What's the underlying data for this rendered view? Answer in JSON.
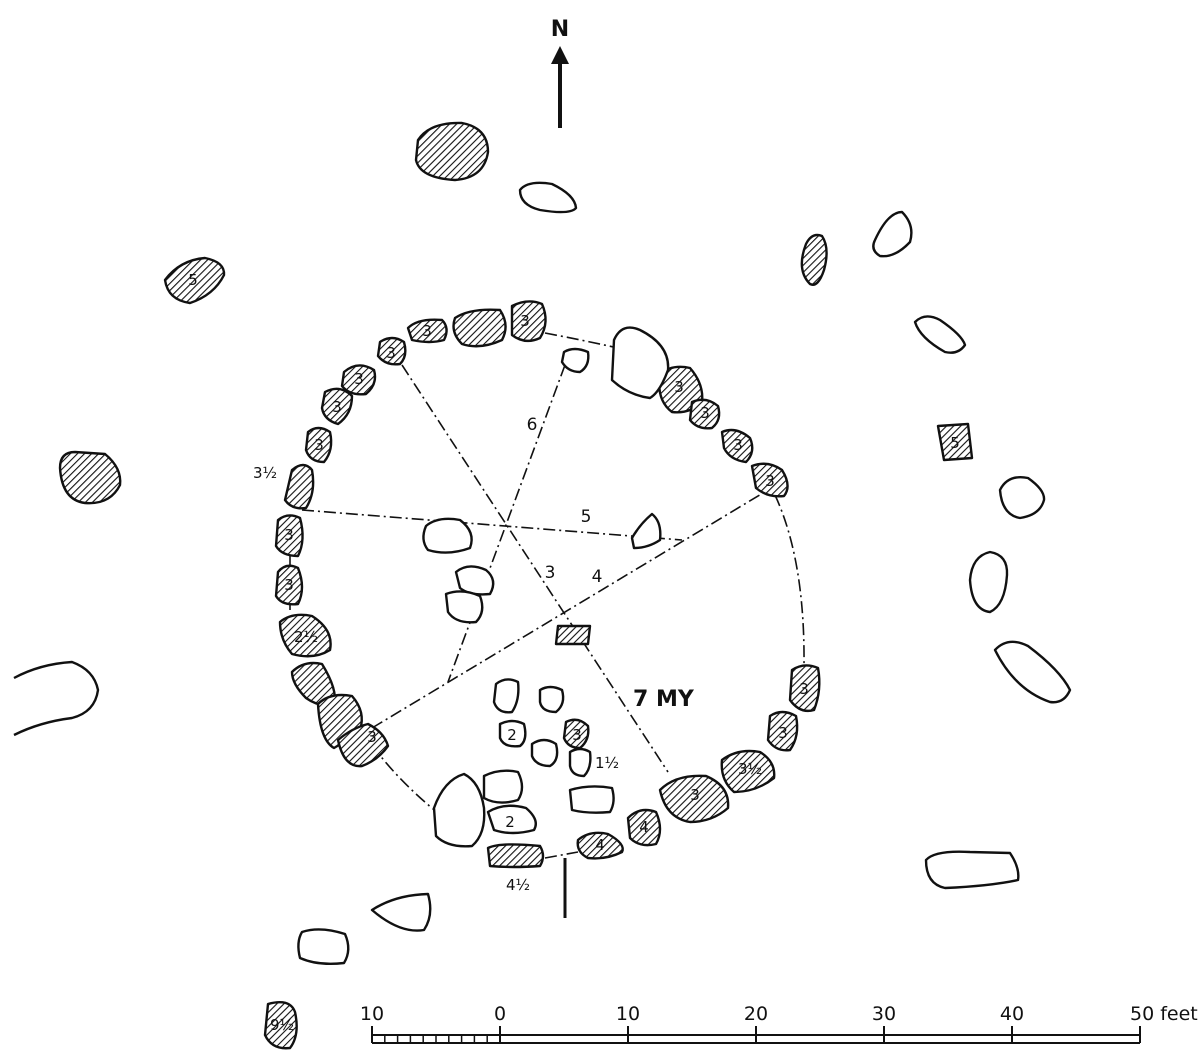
{
  "north_label": "N",
  "chord_labels": [
    "6",
    "5",
    "3",
    "4"
  ],
  "line_label": "7 MY",
  "stone_labels": {
    "outer_w": "5",
    "outer_e": "5",
    "sw_large": "9½",
    "nw_1": "3",
    "nw_2": "3",
    "nw_3": "3",
    "n_1": "3",
    "n_2": "3",
    "w_1": "3",
    "w_2": "3½",
    "w_3": "3",
    "w_4": "3",
    "w_5": "2½",
    "sw_1": "3",
    "ne_1": "3",
    "ne_2": "3",
    "ne_3": "3",
    "ne_4": "3",
    "se_1": "3",
    "se_2": "3",
    "se_3": "3½",
    "se_4": "3",
    "s_1": "4",
    "s_2": "4",
    "s_3": "4½",
    "c_1": "2",
    "c_2": "3",
    "c_3": "1½",
    "c_4": "2"
  },
  "scale": {
    "ticks": [
      "10",
      "0",
      "10",
      "20",
      "30",
      "40",
      "50 feet"
    ]
  }
}
